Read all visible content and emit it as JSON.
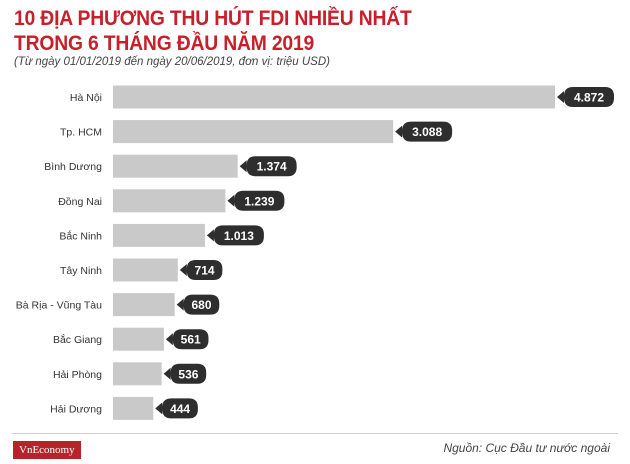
{
  "title_line1": "10 ĐỊA PHƯƠNG THU HÚT FDI NHIỀU NHẤT",
  "title_line2": "TRONG 6 THÁNG ĐẦU NĂM 2019",
  "subtitle": "(Từ ngày 01/01/2019 đến ngày 20/06/2019, đơn vị: triệu USD)",
  "brand": "VnEconomy",
  "source": "Nguồn: Cục Đầu tư nước ngoài",
  "colors": {
    "title": "#c8202a",
    "bar": "#c9c9c9",
    "badge": "#2e2e2e",
    "brand_bg": "#b8232b"
  },
  "chart_data": {
    "type": "bar",
    "orientation": "horizontal",
    "categories": [
      "Hà Nội",
      "Tp. HCM",
      "Bình Dương",
      "Đồng Nai",
      "Bắc Ninh",
      "Tây Ninh",
      "Bà Rịa - Vũng Tàu",
      "Bắc Giang",
      "Hải Phòng",
      "Hải Dương"
    ],
    "values": [
      4872,
      3088,
      1374,
      1239,
      1013,
      714,
      680,
      561,
      536,
      444
    ],
    "value_labels": [
      "4.872",
      "3.088",
      "1.374",
      "1.239",
      "1.013",
      "714",
      "680",
      "561",
      "536",
      "444"
    ],
    "grid": false,
    "legend": "none"
  }
}
